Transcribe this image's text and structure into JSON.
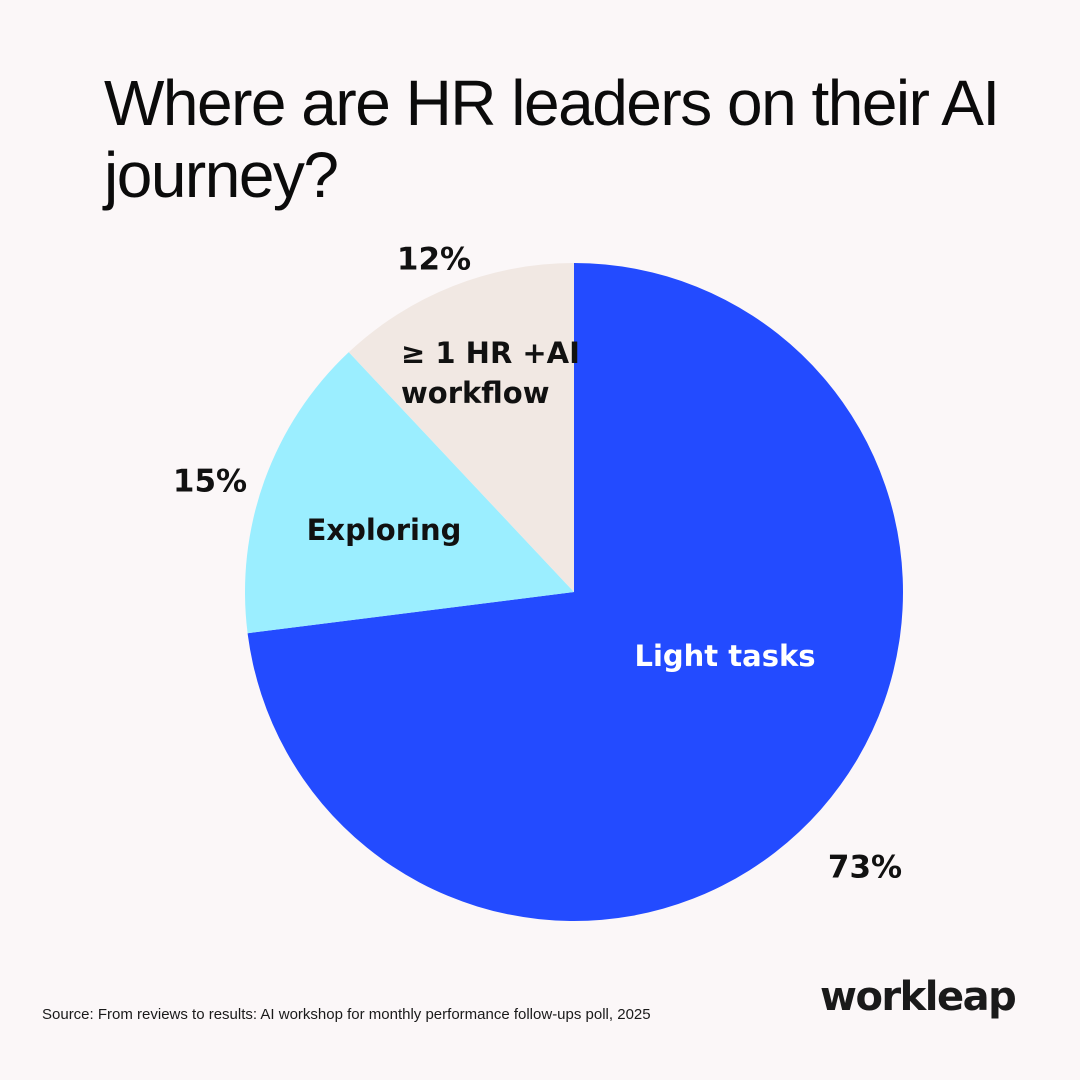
{
  "title": "Where are HR leaders on their AI journey?",
  "chart_data": {
    "type": "pie",
    "title": "Where are HR leaders on their AI journey?",
    "slices": [
      {
        "label": "Light tasks",
        "value": 73,
        "value_label": "73%",
        "color": "#234bff",
        "label_color": "#ffffff"
      },
      {
        "label": "Exploring",
        "value": 15,
        "value_label": "15%",
        "color": "#9beeff",
        "label_color": "#111111"
      },
      {
        "label": "≥ 1 HR +AI workflow",
        "label_lines": [
          "≥ 1 HR +AI",
          "workflow"
        ],
        "value": 12,
        "value_label": "12%",
        "color": "#f1e8e3",
        "label_color": "#111111"
      }
    ],
    "start": "12 o'clock",
    "direction": "clockwise"
  },
  "source": "Source: From reviews to results: AI workshop for monthly performance follow-ups poll, 2025",
  "logo": {
    "text": "workleap"
  },
  "colors": {
    "background": "#fbf7f8",
    "text": "#0b0b0b"
  }
}
